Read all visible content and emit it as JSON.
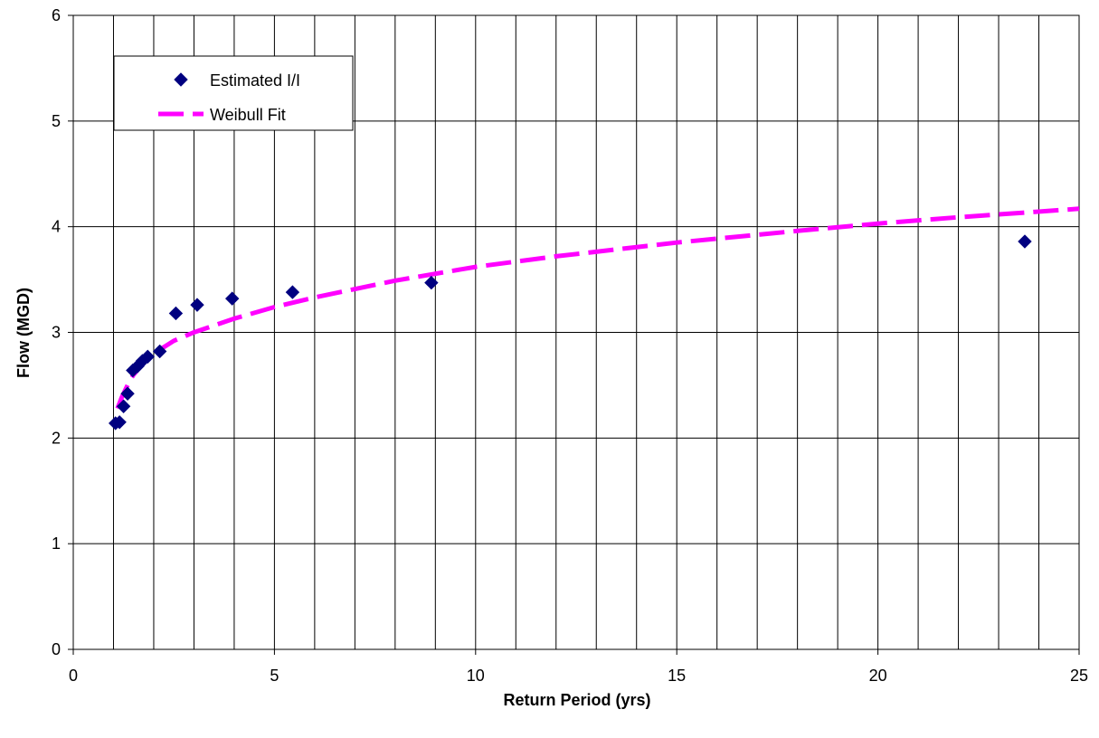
{
  "chart_data": {
    "type": "scatter",
    "title": "",
    "xlabel": "Return Period (yrs)",
    "ylabel": "Flow (MGD)",
    "xlim": [
      0,
      25
    ],
    "ylim": [
      0,
      6
    ],
    "x_ticks": [
      0,
      5,
      10,
      15,
      20,
      25
    ],
    "y_ticks": [
      0,
      1,
      2,
      3,
      4,
      5,
      6
    ],
    "x_gridline_step": 1,
    "y_gridline_step": 1,
    "grid": true,
    "legend_position": "top-left",
    "series": [
      {
        "name": "Estimated I/I",
        "type": "scatter",
        "marker": "diamond",
        "color": "#000080",
        "x": [
          1.05,
          1.15,
          1.25,
          1.35,
          1.48,
          1.6,
          1.72,
          1.85,
          2.15,
          2.55,
          3.08,
          3.95,
          5.45,
          8.9,
          23.65
        ],
        "y": [
          2.14,
          2.15,
          2.3,
          2.42,
          2.64,
          2.68,
          2.73,
          2.77,
          2.82,
          3.18,
          3.26,
          3.32,
          3.38,
          3.47,
          3.86
        ]
      },
      {
        "name": "Weibull Fit",
        "type": "line",
        "style": "dashed",
        "color": "#ff00ff",
        "x": [
          1.1,
          1.2,
          1.3,
          1.4,
          1.5,
          1.7,
          2.0,
          2.5,
          3.0,
          4.0,
          5.0,
          6.0,
          8.0,
          10.0,
          12.0,
          15.0,
          18.0,
          20.0,
          22.0,
          25.0
        ],
        "y": [
          2.28,
          2.38,
          2.46,
          2.54,
          2.6,
          2.69,
          2.8,
          2.92,
          3.0,
          3.13,
          3.24,
          3.33,
          3.49,
          3.62,
          3.72,
          3.85,
          3.96,
          4.03,
          4.09,
          4.17
        ]
      }
    ]
  }
}
